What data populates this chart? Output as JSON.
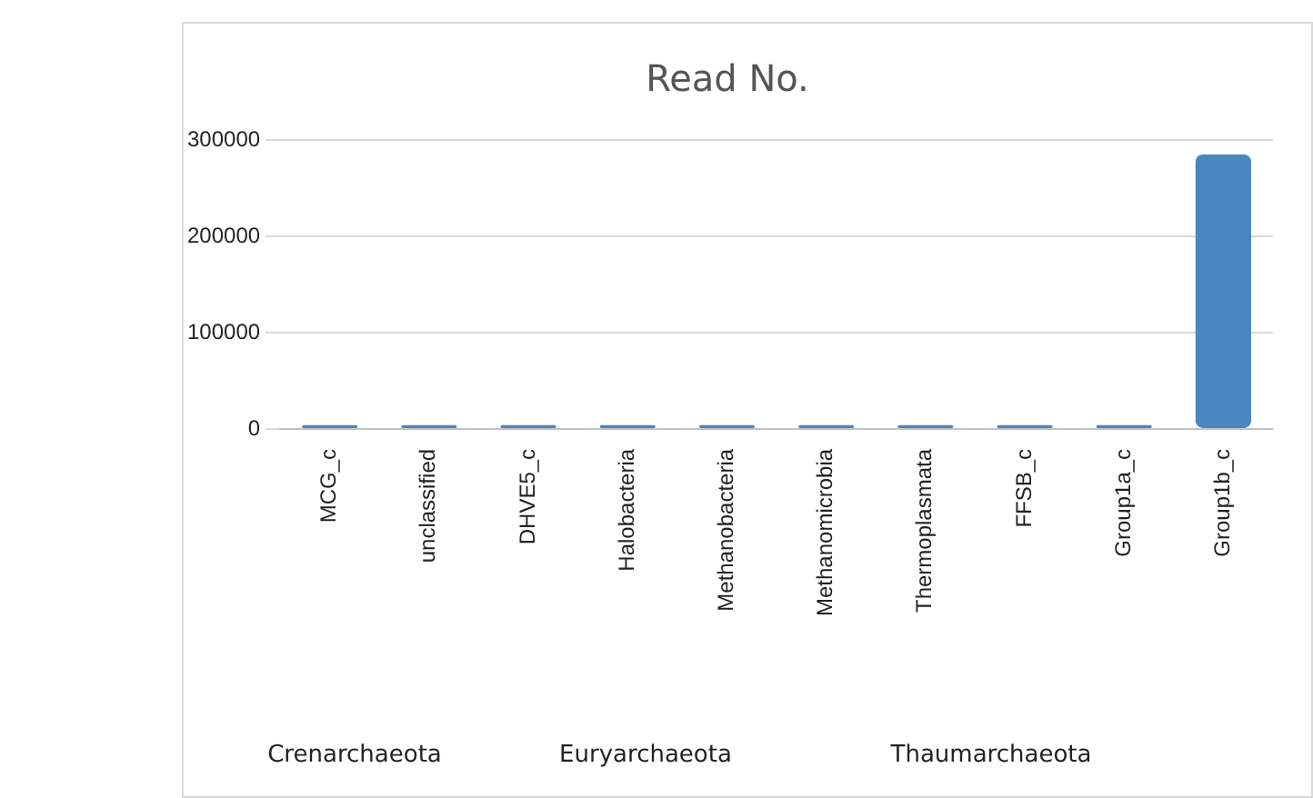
{
  "chart_data": {
    "type": "bar",
    "title": "Read No.",
    "categories": [
      "MCG_c",
      "unclassified",
      "DHVE5_c",
      "Halobacteria",
      "Methanobacteria",
      "Methanomicrobia",
      "Thermoplasmata",
      "FFSB_c",
      "Group1a_c",
      "Group1b_c"
    ],
    "values": [
      4000,
      4000,
      4000,
      4000,
      4000,
      4000,
      4000,
      4000,
      4000,
      285000
    ],
    "color": "#4a86c0",
    "ylim": [
      0,
      300000
    ],
    "yticks": [
      0,
      100000,
      200000,
      300000
    ],
    "grid": "y",
    "annotations": [
      "Crenarchaeota",
      "Euryarchaeota",
      "Thaumarchaeota"
    ]
  }
}
